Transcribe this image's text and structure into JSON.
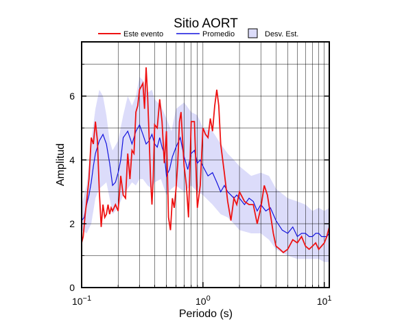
{
  "chart_data": {
    "type": "line",
    "title": "Sitio AORT",
    "xlabel": "Periodo (s)",
    "ylabel": "Amplitud",
    "xscale": "log",
    "xlim": [
      0.1,
      11
    ],
    "ylim": [
      0,
      7.7
    ],
    "x_ticks": [
      {
        "value": 0.1,
        "base": "10",
        "exp": "−1"
      },
      {
        "value": 1,
        "base": "10",
        "exp": "0"
      },
      {
        "value": 10,
        "base": "10",
        "exp": "1"
      }
    ],
    "y_ticks": [
      0,
      2,
      4,
      6
    ],
    "grid": true,
    "legend_position": "top-center",
    "legend": {
      "event_label": "Este evento",
      "mean_label": "Promedio",
      "std_label": "Desv. Est."
    },
    "colors": {
      "event": "#ee1111",
      "mean": "#1111dd",
      "std_fill": "#dcdcfa",
      "std_border": "#000000"
    },
    "series": [
      {
        "name": "Este evento",
        "x": [
          0.1,
          0.103,
          0.107,
          0.11,
          0.115,
          0.12,
          0.125,
          0.13,
          0.135,
          0.14,
          0.145,
          0.15,
          0.155,
          0.16,
          0.165,
          0.17,
          0.175,
          0.18,
          0.19,
          0.2,
          0.21,
          0.22,
          0.23,
          0.24,
          0.25,
          0.26,
          0.27,
          0.28,
          0.29,
          0.3,
          0.31,
          0.32,
          0.33,
          0.34,
          0.35,
          0.36,
          0.37,
          0.38,
          0.39,
          0.4,
          0.42,
          0.44,
          0.46,
          0.48,
          0.5,
          0.52,
          0.54,
          0.56,
          0.58,
          0.6,
          0.62,
          0.64,
          0.66,
          0.68,
          0.7,
          0.73,
          0.76,
          0.8,
          0.85,
          0.9,
          0.95,
          1.0,
          1.05,
          1.1,
          1.15,
          1.2,
          1.25,
          1.3,
          1.35,
          1.4,
          1.5,
          1.6,
          1.7,
          1.8,
          1.9,
          2.0,
          2.2,
          2.4,
          2.6,
          2.8,
          3.0,
          3.2,
          3.4,
          3.6,
          3.8,
          4.0,
          4.3,
          4.6,
          5.0,
          5.5,
          6.0,
          6.5,
          7.0,
          7.5,
          8.0,
          8.5,
          9.0,
          9.5,
          10.0,
          10.5,
          11.0
        ],
        "y": [
          1.4,
          1.6,
          2.3,
          2.7,
          3.4,
          4.7,
          4.5,
          5.2,
          4.6,
          3.0,
          1.9,
          2.6,
          2.2,
          2.3,
          2.6,
          2.3,
          2.5,
          2.4,
          2.6,
          2.4,
          3.5,
          2.9,
          2.8,
          4.2,
          3.4,
          4.3,
          4.2,
          5.5,
          5.7,
          6.2,
          6.3,
          6.4,
          5.6,
          6.9,
          6.0,
          4.7,
          3.4,
          2.6,
          3.5,
          5.1,
          5.0,
          5.9,
          5.2,
          3.9,
          4.9,
          2.2,
          1.8,
          2.8,
          2.5,
          3.1,
          3.9,
          5.2,
          5.5,
          4.6,
          3.8,
          3.2,
          2.2,
          5.2,
          5.2,
          2.5,
          3.2,
          5.0,
          4.8,
          4.7,
          5.3,
          4.9,
          5.7,
          6.2,
          5.7,
          4.5,
          3.6,
          2.7,
          2.1,
          2.8,
          2.6,
          3.0,
          2.7,
          2.6,
          2.6,
          2.0,
          2.5,
          3.2,
          2.9,
          2.3,
          1.7,
          1.3,
          1.2,
          1.1,
          1.2,
          1.5,
          1.4,
          1.6,
          1.3,
          1.2,
          1.3,
          1.4,
          1.2,
          1.3,
          1.4,
          1.6,
          1.9
        ]
      },
      {
        "name": "Promedio",
        "x": [
          0.1,
          0.105,
          0.11,
          0.115,
          0.12,
          0.125,
          0.13,
          0.14,
          0.15,
          0.16,
          0.17,
          0.18,
          0.19,
          0.2,
          0.21,
          0.22,
          0.23,
          0.24,
          0.25,
          0.26,
          0.27,
          0.28,
          0.3,
          0.32,
          0.34,
          0.36,
          0.38,
          0.4,
          0.42,
          0.44,
          0.46,
          0.48,
          0.5,
          0.53,
          0.56,
          0.6,
          0.65,
          0.7,
          0.75,
          0.8,
          0.85,
          0.9,
          0.95,
          1.0,
          1.1,
          1.2,
          1.3,
          1.4,
          1.5,
          1.6,
          1.7,
          1.8,
          1.9,
          2.0,
          2.2,
          2.4,
          2.6,
          2.8,
          3.0,
          3.3,
          3.6,
          4.0,
          4.5,
          5.0,
          5.5,
          6.0,
          6.5,
          7.0,
          7.5,
          8.0,
          8.5,
          9.0,
          9.5,
          10.0,
          10.5,
          11.0
        ],
        "y": [
          2.1,
          2.2,
          2.6,
          2.9,
          3.3,
          3.8,
          4.2,
          4.6,
          4.8,
          4.5,
          3.9,
          3.2,
          3.3,
          3.6,
          4.0,
          4.7,
          4.8,
          4.9,
          4.7,
          4.5,
          4.7,
          4.9,
          5.1,
          4.8,
          4.5,
          4.6,
          4.8,
          4.5,
          4.4,
          4.7,
          4.4,
          4.2,
          3.5,
          3.7,
          4.1,
          4.4,
          4.7,
          4.1,
          3.7,
          4.2,
          4.3,
          3.9,
          4.0,
          3.8,
          3.5,
          3.6,
          3.3,
          3.0,
          3.2,
          3.0,
          2.9,
          2.8,
          2.9,
          2.8,
          2.6,
          2.8,
          2.7,
          2.4,
          2.6,
          2.4,
          2.5,
          2.1,
          1.8,
          1.7,
          1.9,
          1.6,
          1.7,
          1.7,
          1.6,
          1.6,
          1.7,
          1.7,
          1.6,
          1.6,
          1.6,
          1.7
        ]
      },
      {
        "name": "Desv. Est.",
        "x": [
          0.1,
          0.11,
          0.12,
          0.13,
          0.14,
          0.15,
          0.16,
          0.17,
          0.18,
          0.2,
          0.22,
          0.24,
          0.26,
          0.28,
          0.3,
          0.32,
          0.35,
          0.38,
          0.4,
          0.45,
          0.5,
          0.55,
          0.6,
          0.7,
          0.8,
          0.9,
          1.0,
          1.2,
          1.4,
          1.6,
          1.8,
          2.0,
          2.5,
          3.0,
          3.5,
          4.0,
          5.0,
          6.0,
          7.0,
          8.0,
          9.0,
          10.0,
          11.0
        ],
        "upper": [
          2.6,
          3.2,
          4.6,
          5.6,
          6.2,
          6.0,
          5.4,
          4.6,
          4.3,
          4.6,
          5.4,
          6.0,
          5.7,
          6.0,
          6.6,
          6.5,
          6.1,
          6.2,
          5.9,
          5.7,
          5.3,
          4.9,
          5.6,
          5.8,
          5.5,
          5.4,
          5.0,
          4.9,
          4.5,
          4.2,
          4.0,
          3.8,
          3.5,
          3.6,
          3.5,
          3.1,
          2.8,
          2.7,
          2.6,
          2.4,
          2.5,
          2.4,
          2.5
        ],
        "lower": [
          1.8,
          1.7,
          2.0,
          2.8,
          3.1,
          3.2,
          3.3,
          2.8,
          2.3,
          2.5,
          2.9,
          3.1,
          3.3,
          3.2,
          3.4,
          3.4,
          3.2,
          3.1,
          3.3,
          3.4,
          2.9,
          3.1,
          3.2,
          3.0,
          3.2,
          3.0,
          2.9,
          2.6,
          2.3,
          2.2,
          2.0,
          1.8,
          1.7,
          1.7,
          1.5,
          1.2,
          1.0,
          0.9,
          0.9,
          0.9,
          0.9,
          0.8,
          0.8
        ]
      }
    ]
  }
}
